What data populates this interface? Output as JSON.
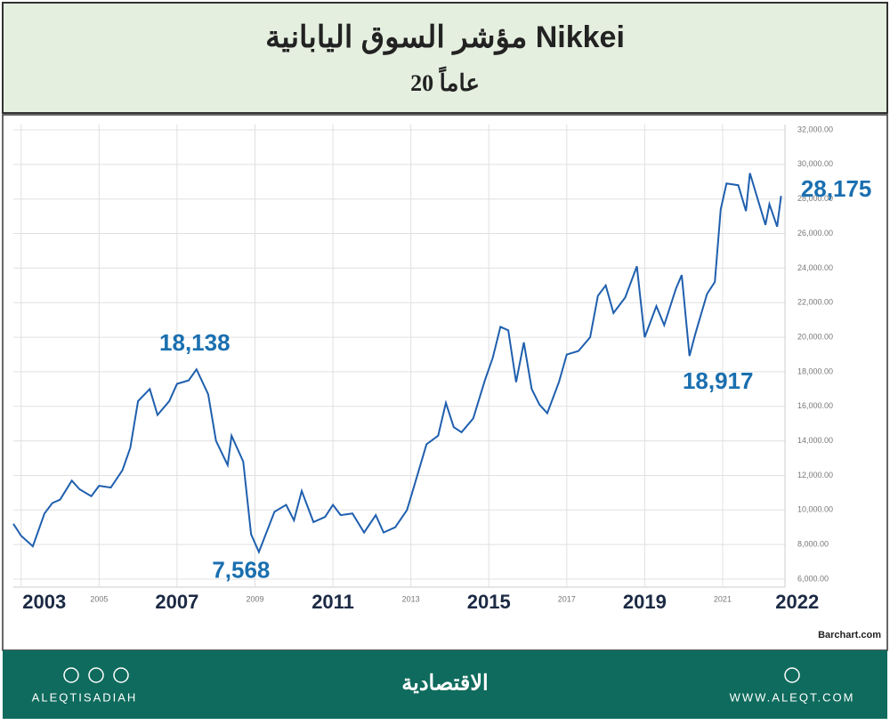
{
  "header": {
    "title": "مؤشر السوق اليابانية Nikkei",
    "subtitle": "20 عاماً"
  },
  "chart_data": {
    "type": "line",
    "source": "Barchart.com",
    "grid": true,
    "color": "#1f5fae",
    "xlim": [
      2002.8,
      2022.6
    ],
    "xticks": [
      2003,
      2005,
      2007,
      2009,
      2011,
      2013,
      2015,
      2017,
      2019,
      2021,
      2022
    ],
    "ylim": [
      6000,
      32000
    ],
    "yticks": [
      {
        "value": 6000,
        "label": "6,000.00"
      },
      {
        "value": 8000,
        "label": "8,000.00"
      },
      {
        "value": 10000,
        "label": "10,000.00"
      },
      {
        "value": 12000,
        "label": "12,000.00"
      },
      {
        "value": 14000,
        "label": "14,000.00"
      },
      {
        "value": 16000,
        "label": "16,000.00"
      },
      {
        "value": 18000,
        "label": "18,000.00"
      },
      {
        "value": 20000,
        "label": "20,000.00"
      },
      {
        "value": 22000,
        "label": "22,000.00"
      },
      {
        "value": 24000,
        "label": "24,000.00"
      },
      {
        "value": 26000,
        "label": "26,000.00"
      },
      {
        "value": 28000,
        "label": "28,000.00"
      },
      {
        "value": 30000,
        "label": "30,000.00"
      },
      {
        "value": 32000,
        "label": "32,000.00"
      }
    ],
    "x": [
      2002.8,
      2003.0,
      2003.3,
      2003.6,
      2003.8,
      2004.0,
      2004.3,
      2004.5,
      2004.8,
      2005.0,
      2005.3,
      2005.6,
      2005.8,
      2006.0,
      2006.3,
      2006.5,
      2006.8,
      2007.0,
      2007.3,
      2007.5,
      2007.8,
      2008.0,
      2008.3,
      2008.4,
      2008.7,
      2008.9,
      2009.1,
      2009.5,
      2009.8,
      2010.0,
      2010.2,
      2010.5,
      2010.8,
      2011.0,
      2011.2,
      2011.5,
      2011.8,
      2012.1,
      2012.3,
      2012.6,
      2012.9,
      2013.1,
      2013.4,
      2013.7,
      2013.9,
      2014.1,
      2014.3,
      2014.6,
      2014.9,
      2015.1,
      2015.3,
      2015.5,
      2015.7,
      2015.9,
      2016.1,
      2016.3,
      2016.5,
      2016.8,
      2017.0,
      2017.3,
      2017.6,
      2017.8,
      2018.0,
      2018.2,
      2018.5,
      2018.8,
      2018.95,
      2019.0,
      2019.3,
      2019.5,
      2019.8,
      2019.95,
      2020.15,
      2020.3,
      2020.6,
      2020.8,
      2020.95,
      2021.1,
      2021.4,
      2021.6,
      2021.7,
      2021.9,
      2022.1,
      2022.2,
      2022.4,
      2022.5
    ],
    "series": [
      {
        "name": "Nikkei",
        "values": [
          9200,
          8500,
          7900,
          9800,
          10400,
          10600,
          11700,
          11200,
          10800,
          11400,
          11300,
          12300,
          13600,
          16300,
          17000,
          15500,
          16300,
          17300,
          17500,
          18138,
          16700,
          14000,
          12600,
          14300,
          12800,
          8600,
          7568,
          9900,
          10300,
          9400,
          11100,
          9300,
          9600,
          10300,
          9700,
          9800,
          8700,
          9700,
          8700,
          9000,
          10000,
          11500,
          13800,
          14300,
          16200,
          14800,
          14500,
          15300,
          17500,
          18800,
          20600,
          20400,
          17400,
          19700,
          17000,
          16100,
          15600,
          17400,
          19000,
          19200,
          20000,
          22400,
          23000,
          21400,
          22300,
          24100,
          21000,
          20000,
          21800,
          20700,
          22800,
          23600,
          18917,
          20200,
          22500,
          23200,
          27400,
          28900,
          28800,
          27300,
          29500,
          28000,
          26500,
          27700,
          26400,
          28175
        ]
      }
    ],
    "annotations": [
      {
        "x": 2007.5,
        "y": 18138,
        "label": "18,138"
      },
      {
        "x": 2009.1,
        "y": 7568,
        "label": "7,568"
      },
      {
        "x": 2020.15,
        "y": 18917,
        "label": "18,917"
      },
      {
        "x": 2022.5,
        "y": 28175,
        "label": "28,175"
      }
    ]
  },
  "footer": {
    "handle": "ALEQTISADIAH",
    "brand": "الاقتصادية",
    "site": "WWW.ALEQT.COM"
  }
}
